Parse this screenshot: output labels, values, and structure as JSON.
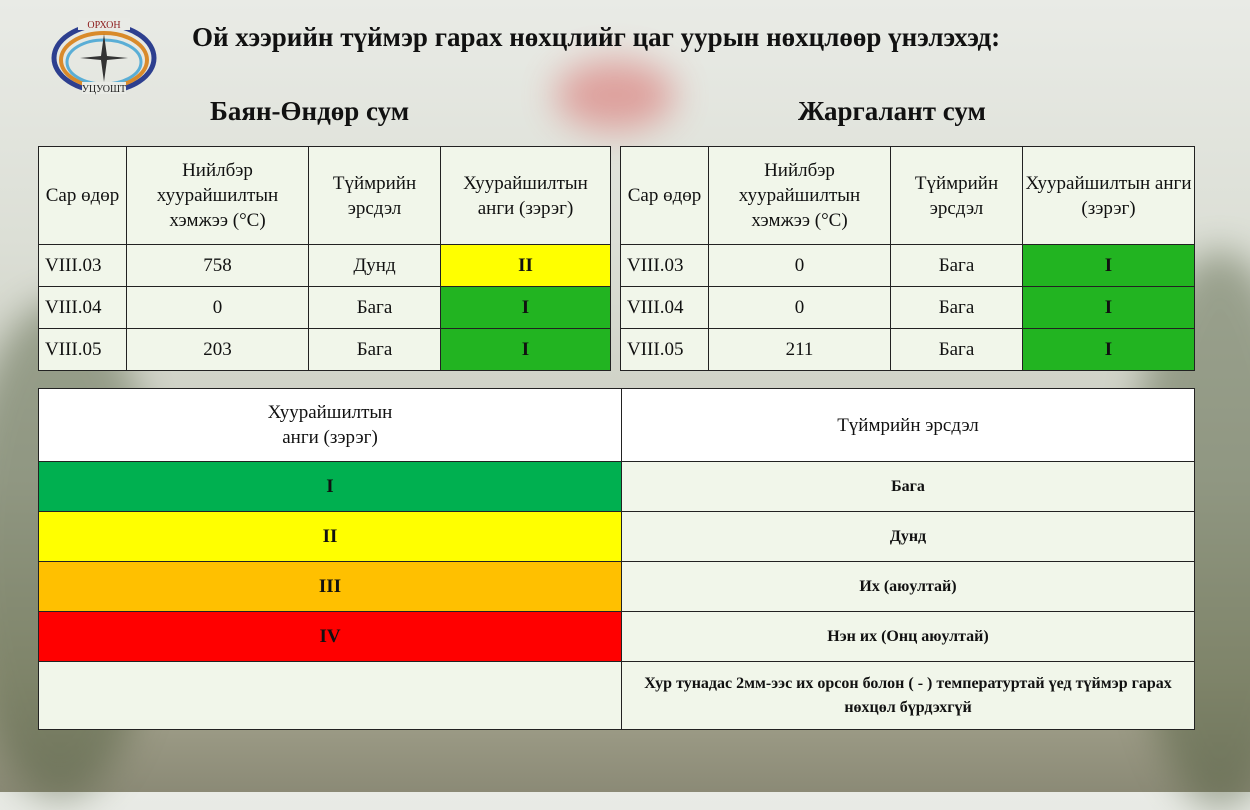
{
  "title": "Ой хээрийн түймэр гарах нөхцлийг цаг уурын нөхцлөөр үнэлэхэд:",
  "logo": {
    "top_text": "ОРХОН",
    "bottom_text": "УЦУОШТ"
  },
  "headers": [
    "Сар өдөр",
    "Нийлбэр хуурайшилтын хэмжээ (°C)",
    "Түймрийн эрсдэл",
    "Хуурайшилтын анги (зэрэг)"
  ],
  "tables": [
    {
      "name": "Баян-Өндөр сум",
      "rows": [
        {
          "date": "VIII.03",
          "value": "758",
          "risk": "Дунд",
          "class": "II",
          "color": "#ffff00"
        },
        {
          "date": "VIII.04",
          "value": "0",
          "risk": "Бага",
          "class": "I",
          "color": "#22b421"
        },
        {
          "date": "VIII.05",
          "value": "203",
          "risk": "Бага",
          "class": "I",
          "color": "#22b421"
        }
      ]
    },
    {
      "name": "Жаргалант сум",
      "rows": [
        {
          "date": "VIII.03",
          "value": "0",
          "risk": "Бага",
          "class": "I",
          "color": "#22b421"
        },
        {
          "date": "VIII.04",
          "value": "0",
          "risk": "Бага",
          "class": "I",
          "color": "#22b421"
        },
        {
          "date": "VIII.05",
          "value": "211",
          "risk": "Бага",
          "class": "I",
          "color": "#22b421"
        }
      ]
    }
  ],
  "legend": {
    "headers": [
      "Хуурайшилтын анги (зэрэг)",
      "Түймрийн эрсдэл"
    ],
    "rows": [
      {
        "class": "I",
        "risk": "Бага",
        "color": "#00b050"
      },
      {
        "class": "II",
        "risk": "Дунд",
        "color": "#ffff00"
      },
      {
        "class": "III",
        "risk": "Их (аюултай)",
        "color": "#ffc000"
      },
      {
        "class": "IV",
        "risk": "Нэн их (Онц аюултай)",
        "color": "#ff0000"
      },
      {
        "class": "",
        "risk": "Хур тунадас 2мм-ээс их орсон болон  ( - ) температуртай үед түймэр гарах нөхцөл бүрдэхгүй"
      }
    ]
  }
}
